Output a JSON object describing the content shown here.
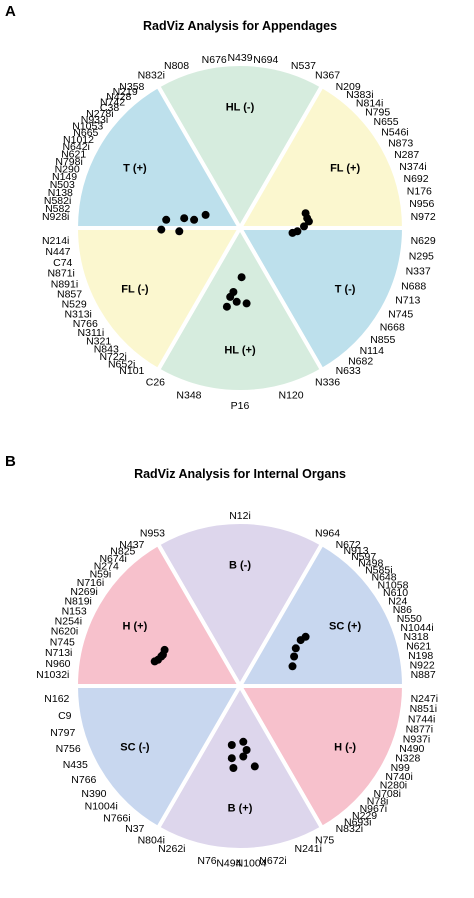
{
  "chart_data": [
    {
      "type": "scatter",
      "subtype": "radviz",
      "panel": "A",
      "title": "RadViz Analysis for Appendages",
      "sectors": [
        {
          "label": "HL (-)",
          "color": "#d6ecde"
        },
        {
          "label": "FL (+)",
          "color": "#fbf7cf"
        },
        {
          "label": "T (-)",
          "color": "#bde0ec"
        },
        {
          "label": "HL (+)",
          "color": "#d6ecde"
        },
        {
          "label": "FL (-)",
          "color": "#fbf7cf"
        },
        {
          "label": "T (+)",
          "color": "#bde0ec"
        }
      ],
      "anchors": [
        [
          "N832i",
          "N808",
          "N676",
          "N439",
          "N694",
          "N537",
          "N367"
        ],
        [
          "N209",
          "N383i",
          "N814i",
          "N795",
          "N655",
          "N546i",
          "N873",
          "N287",
          "N374i",
          "N692",
          "N176",
          "N956",
          "N972"
        ],
        [
          "N629",
          "N295",
          "N337",
          "N688",
          "N713",
          "N745",
          "N668",
          "N855",
          "N114",
          "N682",
          "N633"
        ],
        [
          "N336",
          "N120",
          "P16",
          "N348",
          "C26"
        ],
        [
          "N101",
          "N652i",
          "N722i",
          "N843",
          "N321",
          "N311i",
          "N766",
          "N313i",
          "N529",
          "N857",
          "N891i",
          "N871i",
          "C74",
          "N447",
          "N214i"
        ],
        [
          "N928i",
          "N582",
          "N582i",
          "N138",
          "N503",
          "N149",
          "N290",
          "N798i",
          "N621",
          "N642i",
          "N1012",
          "N665",
          "N1053",
          "N933i",
          "N278i",
          "C38",
          "N742",
          "N428",
          "N219",
          "N358"
        ]
      ],
      "points": [
        {
          "x": -0.45,
          "y": 0.05
        },
        {
          "x": -0.48,
          "y": -0.01
        },
        {
          "x": -0.37,
          "y": -0.02
        },
        {
          "x": -0.34,
          "y": 0.06
        },
        {
          "x": -0.28,
          "y": 0.05
        },
        {
          "x": -0.21,
          "y": 0.08
        },
        {
          "x": 0.4,
          "y": 0.09
        },
        {
          "x": 0.41,
          "y": 0.06
        },
        {
          "x": 0.42,
          "y": 0.04
        },
        {
          "x": 0.39,
          "y": 0.01
        },
        {
          "x": 0.35,
          "y": -0.02
        },
        {
          "x": 0.32,
          "y": -0.03
        },
        {
          "x": 0.01,
          "y": -0.3
        },
        {
          "x": -0.04,
          "y": -0.39
        },
        {
          "x": -0.06,
          "y": -0.42
        },
        {
          "x": -0.02,
          "y": -0.45
        },
        {
          "x": 0.04,
          "y": -0.46
        },
        {
          "x": -0.08,
          "y": -0.48
        }
      ]
    },
    {
      "type": "scatter",
      "subtype": "radviz",
      "panel": "B",
      "title": "RadViz Analysis for Internal Organs",
      "sectors": [
        {
          "label": "B (-)",
          "color": "#ddd6ec"
        },
        {
          "label": "SC (+)",
          "color": "#c8d7ef"
        },
        {
          "label": "H (-)",
          "color": "#f7c1cc"
        },
        {
          "label": "B (+)",
          "color": "#ddd6ec"
        },
        {
          "label": "SC (-)",
          "color": "#c8d7ef"
        },
        {
          "label": "H (+)",
          "color": "#f7c1cc"
        }
      ],
      "anchors": [
        [
          "N953",
          "N12i",
          "N964"
        ],
        [
          "N672",
          "N913",
          "N597",
          "N498",
          "N585i",
          "N648",
          "N1058",
          "N610",
          "N24",
          "N86",
          "N550",
          "N1044i",
          "N318",
          "N621",
          "N198",
          "N922",
          "N887"
        ],
        [
          "N247i",
          "N851i",
          "N744i",
          "N877i",
          "N937i",
          "N490",
          "N328",
          "N99",
          "N740i",
          "N280i",
          "N708i",
          "N78i",
          "N967i",
          "N229",
          "N693i",
          "N832i"
        ],
        [
          "N75",
          "N241i",
          "N672i",
          "N1004",
          "N494",
          "N76",
          "N262i",
          "N804i"
        ],
        [
          "N37",
          "N766i",
          "N1004i",
          "N390",
          "N766",
          "N435",
          "N756",
          "N797",
          "C9",
          "N162"
        ],
        [
          "N1032i",
          "N960",
          "N713i",
          "N745",
          "N620i",
          "N254i",
          "N153",
          "N819i",
          "N269i",
          "N716i",
          "N59i",
          "N274",
          "N674i",
          "N825",
          "N437"
        ]
      ],
      "points": [
        {
          "x": -0.52,
          "y": 0.15
        },
        {
          "x": -0.5,
          "y": 0.16
        },
        {
          "x": -0.47,
          "y": 0.19
        },
        {
          "x": -0.46,
          "y": 0.22
        },
        {
          "x": -0.48,
          "y": 0.18
        },
        {
          "x": 0.4,
          "y": 0.3
        },
        {
          "x": 0.37,
          "y": 0.28
        },
        {
          "x": 0.34,
          "y": 0.23
        },
        {
          "x": 0.33,
          "y": 0.18
        },
        {
          "x": 0.32,
          "y": 0.12
        },
        {
          "x": 0.02,
          "y": -0.34
        },
        {
          "x": -0.05,
          "y": -0.36
        },
        {
          "x": 0.04,
          "y": -0.39
        },
        {
          "x": -0.05,
          "y": -0.44
        },
        {
          "x": 0.02,
          "y": -0.43
        },
        {
          "x": 0.09,
          "y": -0.49
        },
        {
          "x": -0.04,
          "y": -0.5
        }
      ]
    }
  ]
}
